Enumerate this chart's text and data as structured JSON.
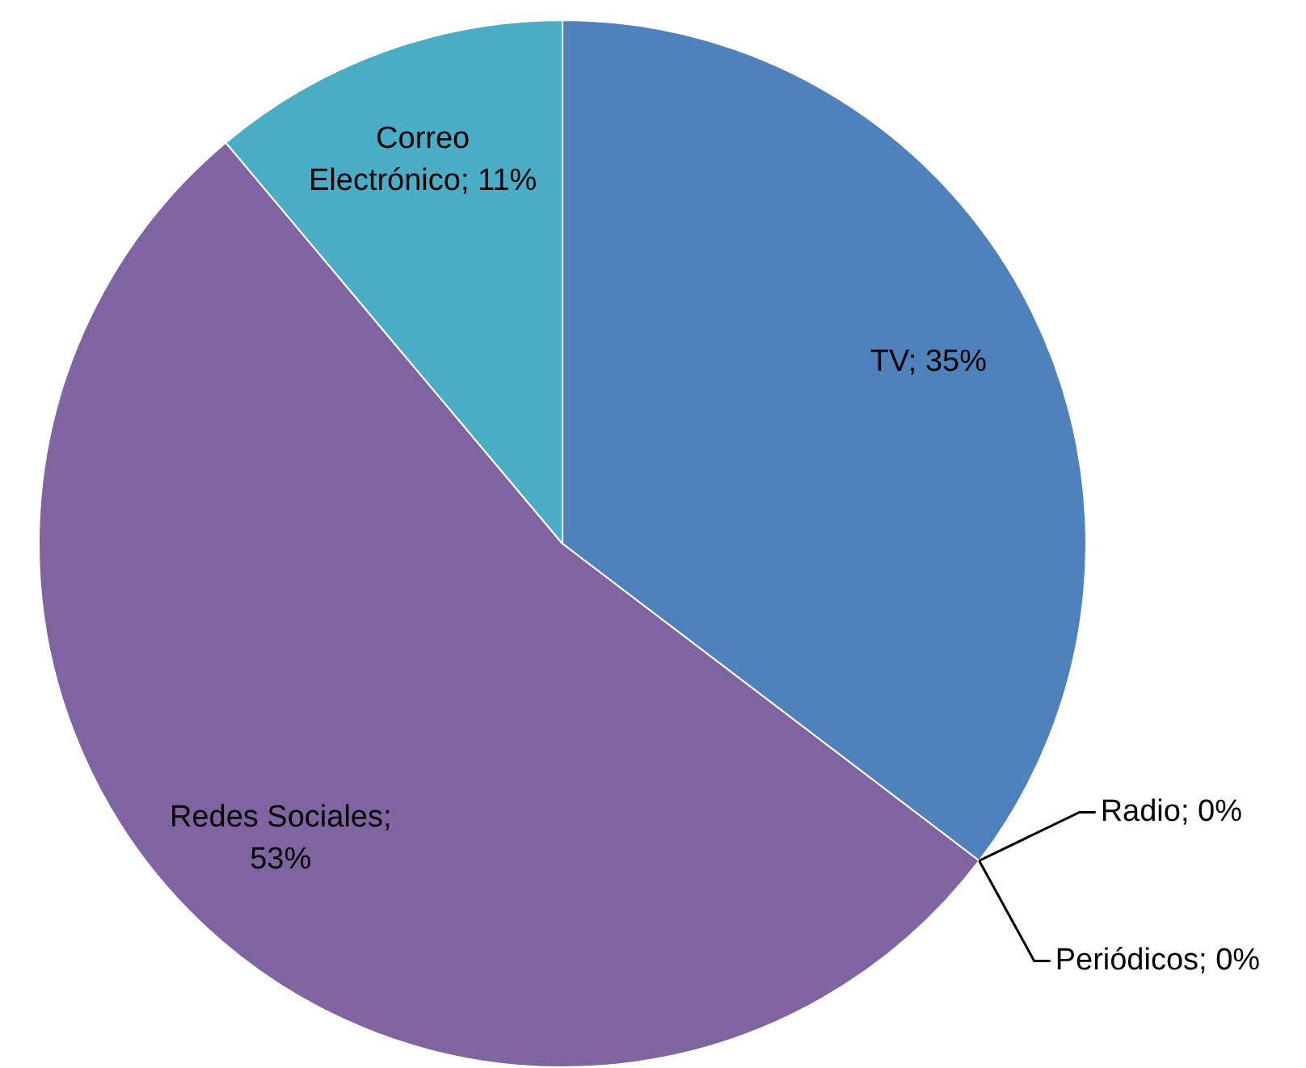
{
  "chart_data": {
    "type": "pie",
    "categories": [
      "TV",
      "Radio",
      "Periódicos",
      "Redes Sociales",
      "Correo Electrónico"
    ],
    "values": [
      35,
      0,
      0,
      53,
      11
    ],
    "colors": [
      "#4f81bd",
      "#c0504d",
      "#9bbb59",
      "#8064a2",
      "#4bacc6"
    ],
    "value_labels": [
      "; 35%",
      "; 0%",
      "; 0%",
      "; 53%",
      "; 11%"
    ],
    "legend": false
  }
}
